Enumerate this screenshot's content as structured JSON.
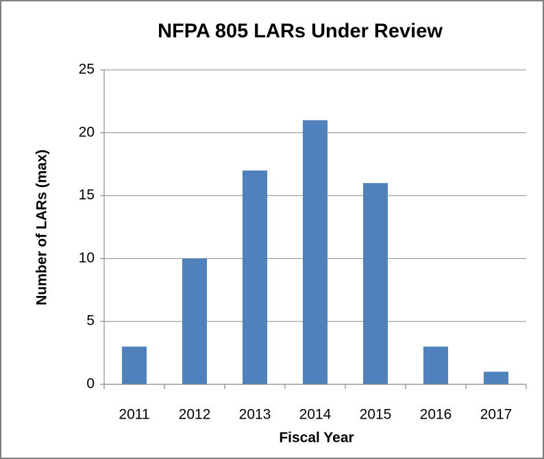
{
  "chart_data": {
    "type": "bar",
    "title": "NFPA 805 LARs Under Review",
    "x_label": "Fiscal Year",
    "y_label": "Number of LARs (max)",
    "categories": [
      "2011",
      "2012",
      "2013",
      "2014",
      "2015",
      "2016",
      "2017"
    ],
    "values": [
      3,
      10,
      17,
      21,
      16,
      3,
      1
    ],
    "color": "#4f81bd",
    "ylim": [
      0,
      25
    ],
    "yticks": [
      0,
      5,
      10,
      15,
      20,
      25
    ],
    "grid": true
  }
}
